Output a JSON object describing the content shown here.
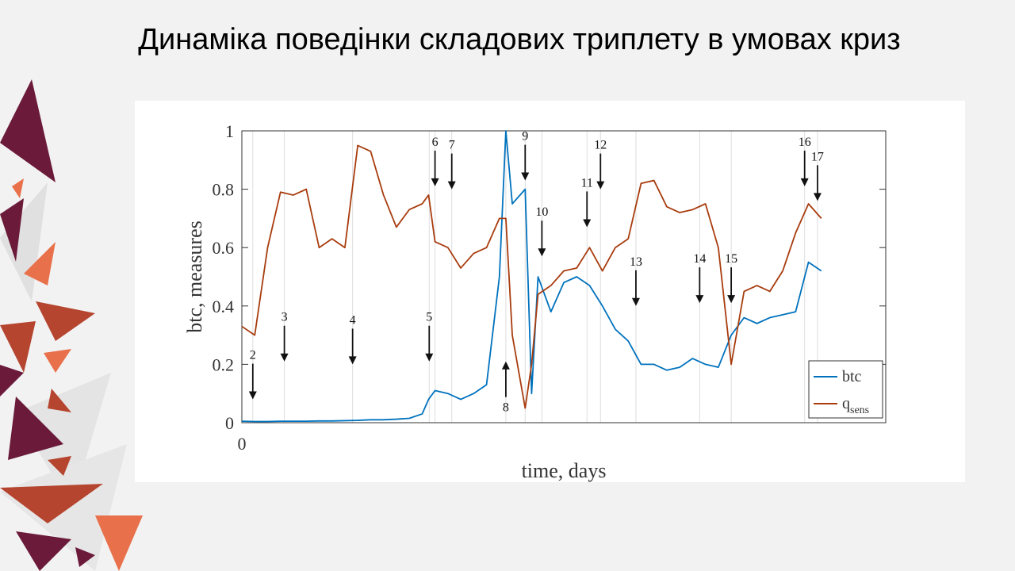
{
  "title": "Динаміка поведінки складових триплету в умовах криз",
  "chart_data": {
    "type": "line",
    "xlabel": "time, days",
    "ylabel": "btc, measures",
    "x": [
      0,
      2,
      4,
      6,
      8,
      10,
      12,
      14,
      16,
      18,
      20,
      22,
      24,
      26,
      28,
      29,
      30,
      32,
      34,
      36,
      38,
      40,
      41,
      42,
      44,
      45,
      46,
      48,
      50,
      52,
      54,
      56,
      58,
      60,
      62,
      64,
      66,
      68,
      70,
      72,
      74,
      76,
      78,
      80,
      82,
      84,
      86,
      88,
      90
    ],
    "series": [
      {
        "name": "btc",
        "color": "#0072bd",
        "values": [
          0.005,
          0.004,
          0.004,
          0.005,
          0.005,
          0.005,
          0.006,
          0.006,
          0.007,
          0.008,
          0.01,
          0.01,
          0.012,
          0.015,
          0.03,
          0.08,
          0.11,
          0.1,
          0.08,
          0.1,
          0.13,
          0.5,
          1,
          0.75,
          0.8,
          0.1,
          0.5,
          0.38,
          0.48,
          0.5,
          0.47,
          0.4,
          0.32,
          0.28,
          0.2,
          0.2,
          0.18,
          0.19,
          0.22,
          0.2,
          0.19,
          0.3,
          0.36,
          0.34,
          0.36,
          0.37,
          0.38,
          0.55,
          0.52
        ]
      },
      {
        "name": "q",
        "name_subscript": "sens",
        "color": "#a83c0e",
        "values": [
          0.33,
          0.3,
          0.6,
          0.79,
          0.78,
          0.8,
          0.6,
          0.63,
          0.6,
          0.95,
          0.93,
          0.78,
          0.67,
          0.73,
          0.75,
          0.78,
          0.62,
          0.6,
          0.53,
          0.58,
          0.6,
          0.7,
          0.7,
          0.3,
          0.05,
          0.2,
          0.44,
          0.47,
          0.52,
          0.53,
          0.6,
          0.52,
          0.6,
          0.63,
          0.82,
          0.83,
          0.74,
          0.72,
          0.73,
          0.75,
          0.6,
          0.2,
          0.45,
          0.47,
          0.45,
          0.52,
          0.65,
          0.75,
          0.7
        ]
      }
    ],
    "xlim": [
      0,
      100
    ],
    "xticks": [
      0
    ],
    "ylim": [
      0,
      1
    ],
    "yticks": [
      0,
      0.2,
      0.4,
      0.6,
      0.8,
      1
    ],
    "legend": "lower right",
    "annotations": [
      {
        "label": "2",
        "x": 1.7,
        "y": 0.08,
        "direction": "down"
      },
      {
        "label": "3",
        "x": 6.6,
        "y": 0.21,
        "direction": "down"
      },
      {
        "label": "4",
        "x": 17.2,
        "y": 0.2,
        "direction": "down"
      },
      {
        "label": "5",
        "x": 29.1,
        "y": 0.21,
        "direction": "down"
      },
      {
        "label": "6",
        "x": 30.0,
        "y": 0.81,
        "direction": "down"
      },
      {
        "label": "7",
        "x": 32.6,
        "y": 0.8,
        "direction": "down"
      },
      {
        "label": "8",
        "x": 41.0,
        "y": 0.21,
        "direction": "up"
      },
      {
        "label": "9",
        "x": 44.0,
        "y": 0.83,
        "direction": "down"
      },
      {
        "label": "10",
        "x": 46.6,
        "y": 0.57,
        "direction": "down"
      },
      {
        "label": "11",
        "x": 53.6,
        "y": 0.67,
        "direction": "down"
      },
      {
        "label": "12",
        "x": 55.7,
        "y": 0.8,
        "direction": "down"
      },
      {
        "label": "13",
        "x": 61.2,
        "y": 0.4,
        "direction": "down"
      },
      {
        "label": "14",
        "x": 71.1,
        "y": 0.41,
        "direction": "down"
      },
      {
        "label": "15",
        "x": 76.0,
        "y": 0.41,
        "direction": "down"
      },
      {
        "label": "16",
        "x": 87.4,
        "y": 0.81,
        "direction": "down"
      },
      {
        "label": "17",
        "x": 89.4,
        "y": 0.76,
        "direction": "down"
      }
    ]
  }
}
